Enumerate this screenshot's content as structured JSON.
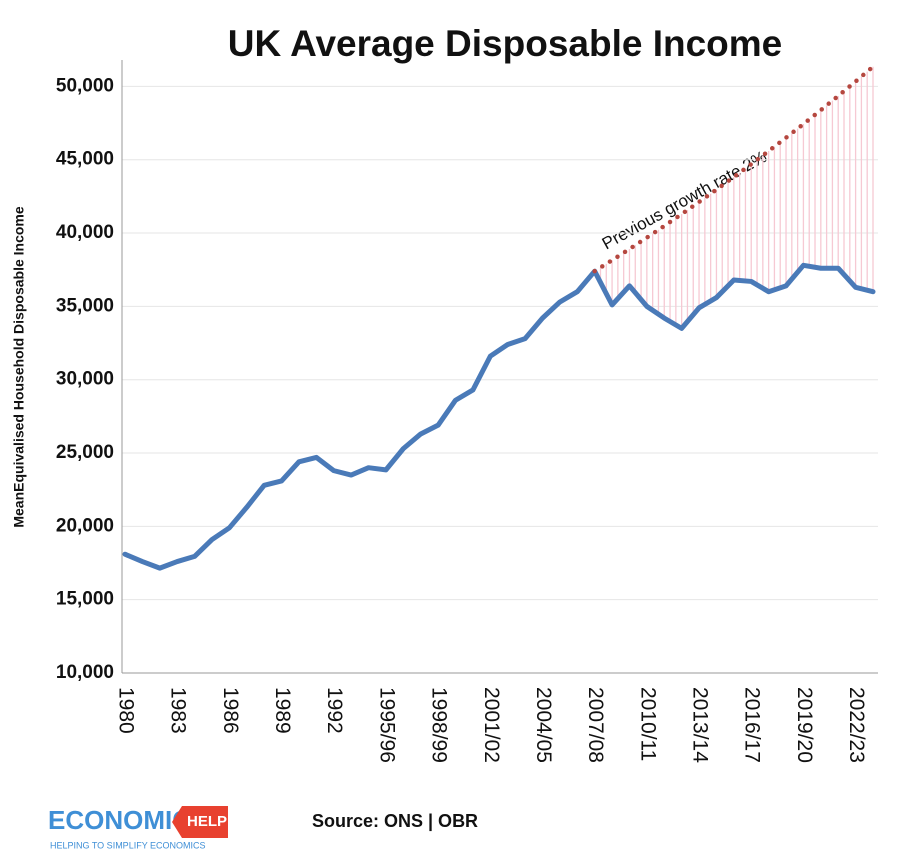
{
  "chart_data": {
    "type": "line",
    "title": "UK Average Disposable Income",
    "y_label": "MeanEquivalised  Household Disposable  Income",
    "annotation": "Previous growth rate 2%",
    "source": "Source: ONS | OBR",
    "logo": {
      "word1": "ECONOMICS",
      "word2": "HELP",
      "tagline": "HELPING TO SIMPLIFY ECONOMICS"
    },
    "categories": [
      "1980",
      null,
      null,
      "1983",
      null,
      null,
      "1986",
      null,
      null,
      "1989",
      null,
      null,
      "1992",
      null,
      null,
      "1995/96",
      null,
      null,
      "1998/99",
      null,
      null,
      "2001/02",
      null,
      null,
      "2004/05",
      null,
      null,
      "2007/08",
      null,
      null,
      "2010/11",
      null,
      null,
      "2013/14",
      null,
      null,
      "2016/17",
      null,
      null,
      "2019/20",
      null,
      null,
      "2022/23",
      null
    ],
    "series": [
      {
        "color": "#4a7ab8",
        "style": "solid",
        "values": [
          18100,
          17600,
          17150,
          17600,
          17950,
          19100,
          19900,
          21300,
          22800,
          23100,
          24400,
          24700,
          23800,
          23500,
          24000,
          23850,
          25300,
          26300,
          26900,
          28600,
          29300,
          31600,
          32400,
          32800,
          34200,
          35300,
          36000,
          37400,
          35100,
          36400,
          35000,
          34200,
          33500,
          34900,
          35600,
          36800,
          36700,
          36000,
          36400,
          37800,
          37600,
          37600,
          36300,
          36000
        ]
      },
      {
        "color": "#b5473f",
        "style": "dotted",
        "values": [
          null,
          null,
          null,
          null,
          null,
          null,
          null,
          null,
          null,
          null,
          null,
          null,
          null,
          null,
          null,
          null,
          null,
          null,
          null,
          null,
          null,
          null,
          null,
          null,
          null,
          null,
          null,
          37400,
          38148,
          38911,
          39689,
          40483,
          41293,
          42119,
          42961,
          43820,
          44697,
          45591,
          46502,
          47432,
          48381,
          49349,
          50336,
          51343
        ]
      }
    ],
    "fill_between": {
      "color": "#f6c9d3"
    },
    "ylim": [
      10000,
      51800
    ],
    "yticks": [
      {
        "value": 10000,
        "label": "10,000"
      },
      {
        "value": 15000,
        "label": "15,000"
      },
      {
        "value": 20000,
        "label": "20,000"
      },
      {
        "value": 25000,
        "label": "25,000"
      },
      {
        "value": 30000,
        "label": "30,000"
      },
      {
        "value": 35000,
        "label": "35,000"
      },
      {
        "value": 40000,
        "label": "40,000"
      },
      {
        "value": 45000,
        "label": "45,000"
      },
      {
        "value": 50000,
        "label": "50,000"
      }
    ],
    "grid": true
  }
}
